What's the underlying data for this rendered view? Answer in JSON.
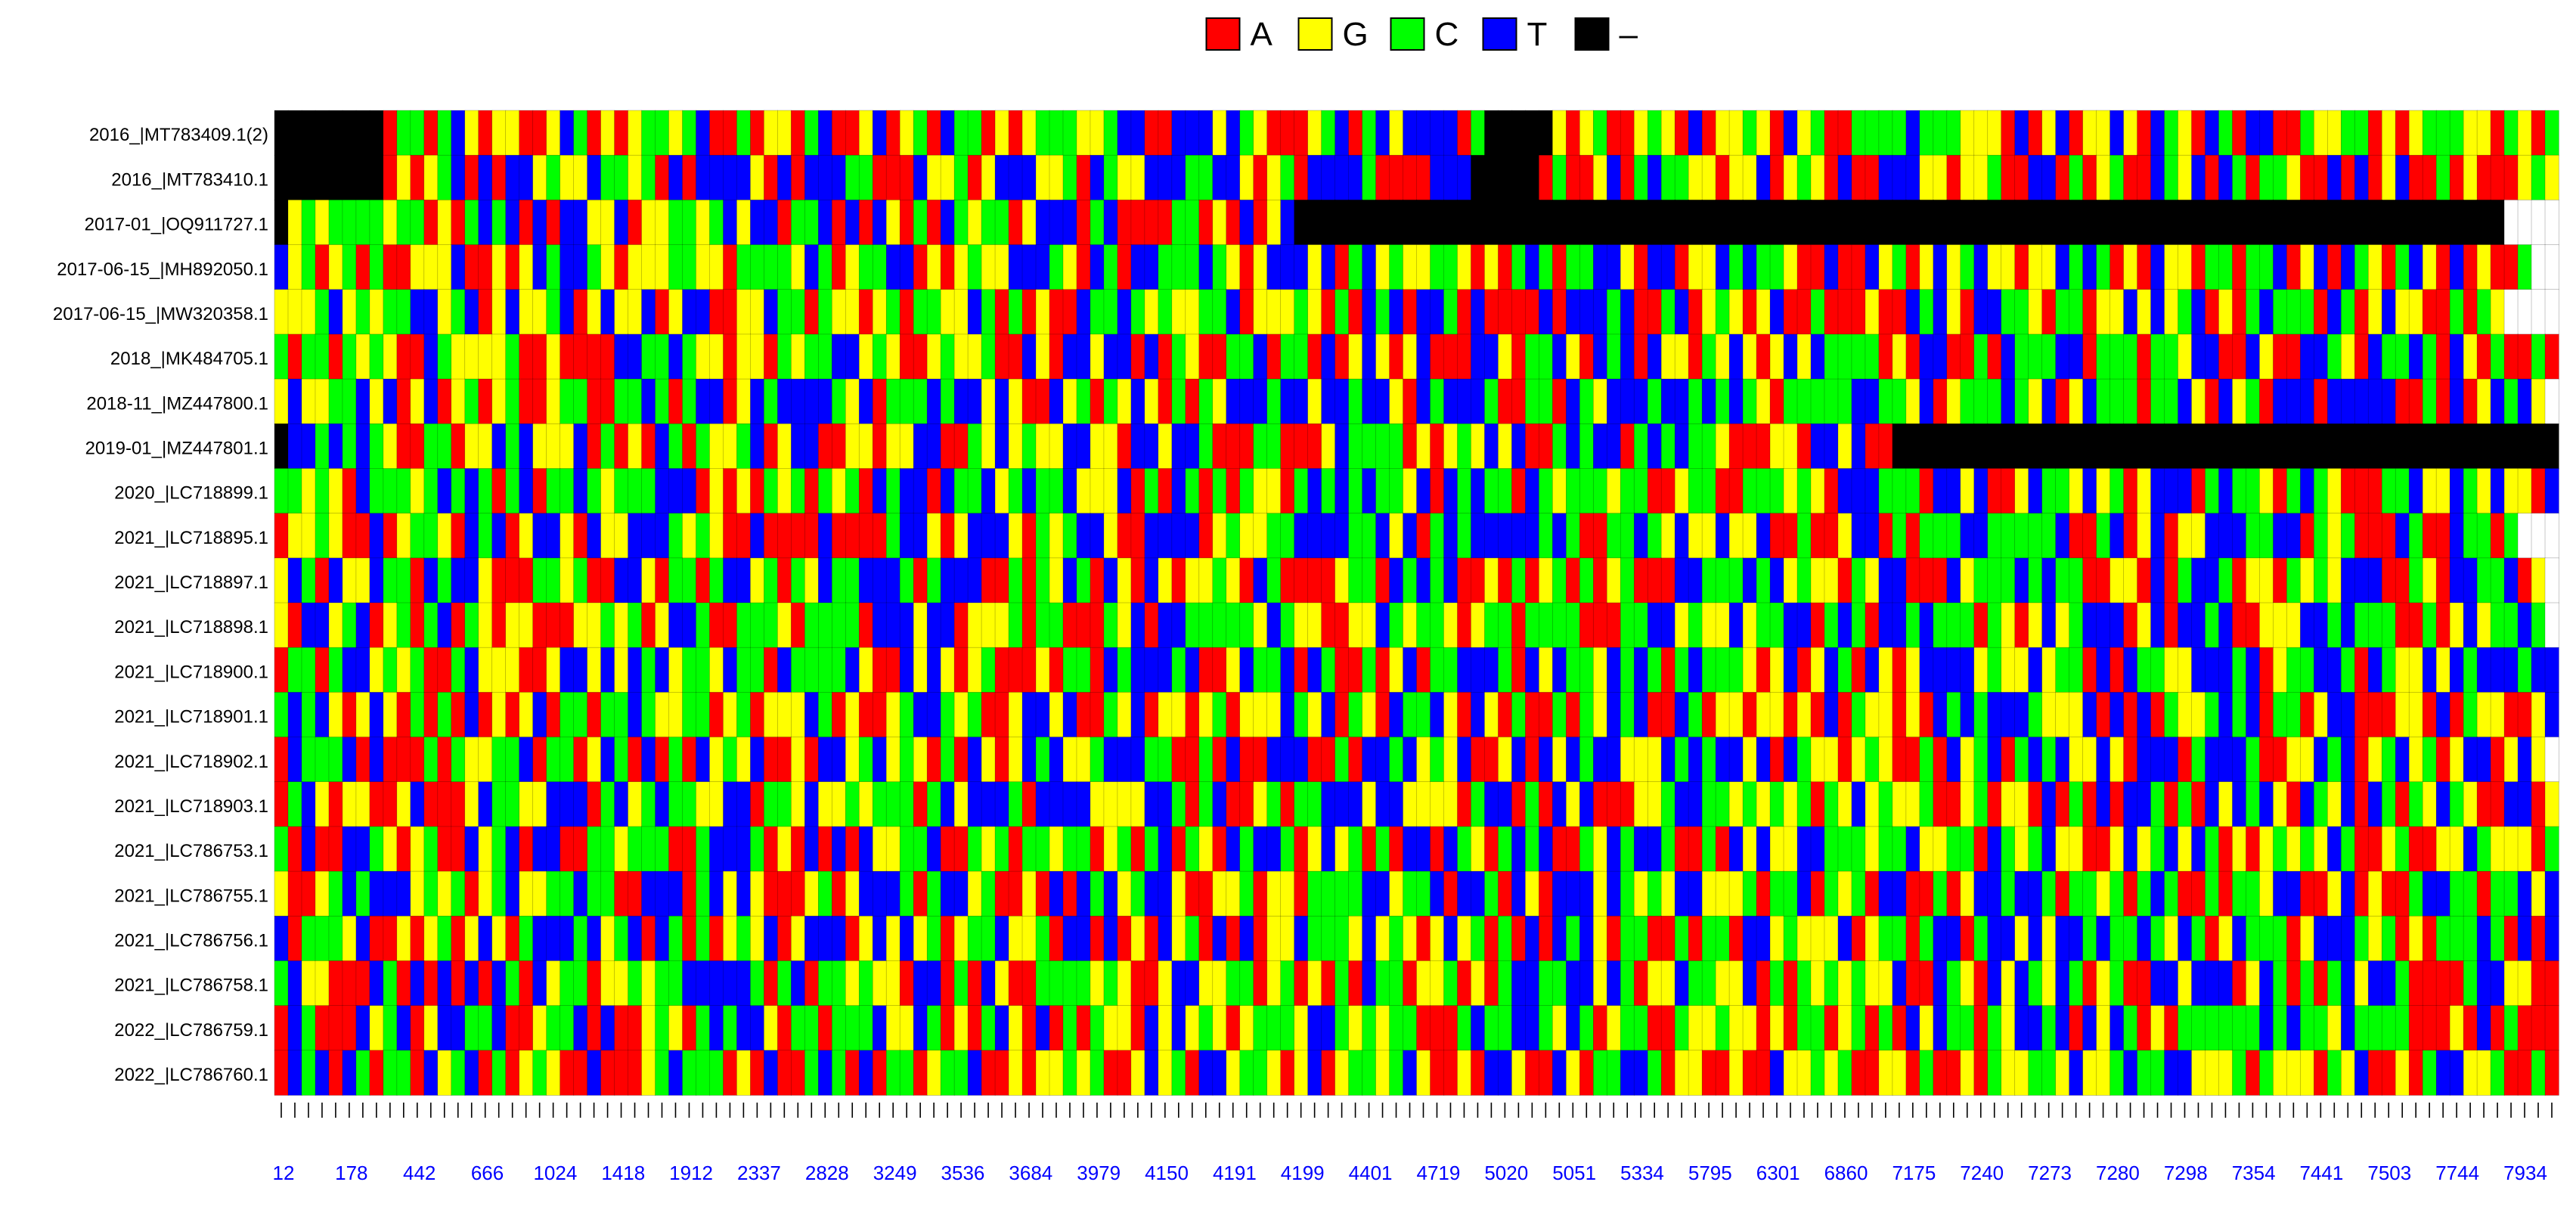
{
  "chart_data": {
    "type": "heatmap",
    "legend": {
      "placement": "top-center",
      "items": [
        {
          "symbol": "A",
          "color": "#ff0000"
        },
        {
          "symbol": "G",
          "color": "#ffff00"
        },
        {
          "symbol": "C",
          "color": "#00ff00"
        },
        {
          "symbol": "T",
          "color": "#0000ff"
        },
        {
          "symbol": "–",
          "color": "#000000"
        }
      ]
    },
    "rows": [
      {
        "label": "2016_|MT783409.1(2)",
        "seq": "--------ACCACTGAGGAAGTCAGAGCCGCTAACAGGACTAAGTAGCATCCAGAGCCCGGCTTAATTTGTCGAAAGCTACTGTTTTAC-----GAGCAAGCGATAGGCGATGCAACCCCTCCCGGGATAGTAGGTGATCGATCATTAACGGCCAGAGCCCGGACGAC"
      },
      {
        "label": "2016_|MT783410.1",
        "seq": "--------AGAGCTATATTGCGGTCCGCATATTTTGATATTTCCAAATGGCAGTTTGGCATCGGTTTCCTTGAGCATTTTCAAAATTT-----ACAAGTACTCCGGAGGTAGCGATAATTTGGAGGCAATTACAGCAATCGTATCACCGAATATAGTAACAGAAAGCG"
      },
      {
        "label": "2017-01_|OQ911727.1",
        "seq": "-GCGCCCCGCCAGACTCTATATTGGTAGGCCGCTGTTACCTATATGACATCGCCAGTTTACTAAAACCAGATAGT-----------------------------------------------------------------------------------------"
      },
      {
        "label": "2017-06-15_|MH892050.1",
        "seq": "TGCAGCACAAGGGTAAGAGTCTTCGAGGGCCGGACCCCGTCAGCCTTAGAGCGGTTTCGATCATTCCCTCGAGTTTGTACTGCGGCCGAGACTCACCTTGATTAGGTCTCCGAATAATGCAGTGCTGGAGGTCTCAGATGGACCACCTAGTATCGACTGATAGAAC"
      },
      {
        "label": "2017-06-15_|MW320358.1",
        "seq": "GGGCTGCGCCTTGCTAGTGGCTAGTGGTAGTTAAGGTCCACGGAGCACCGGTCACAGAATCCTCGCGGCCTAGGGCGACATCTATTCATAAAATATTTCTAACTAGCGAGTAACAAAGAATCTGATTCCGACCAGGTGTGCTAGACTCCCATCAGTGGAACACG"
      },
      {
        "label": "2018_|MK484705.1",
        "seq": "CACCACGCGAATCGGGGCAAGAAAATTCCTCGGAGGACGCCTTGCGAAGCGGCAATGATTGTTATACGAACCTACCATAGTGAGTAAATTGACCTGATCTATGGACGTGAGTGTCCCCAGATTAACATCCCTTACCCACCGTTAATGAATTCGATCCTCATGACAACA"
      },
      {
        "label": "2018-11_|MZ447800.1",
        "seq": "GTGGCCTGTAGTAGCAGCAAGCCAACCTCACTTAGTCTTTTCGTACCCTCTTGTGAATGCACGTGACACGTTTCTTGTTCTTGATCTTTCAACCATCGTTTCTTCTCTCGACCCCCTTCCGTAGCCCTCGTAGTCCCACCTGATGCATTTATTTTTAACATAGTCTG"
      },
      {
        "label": "2019-01_|MZ447801.1",
        "seq": "-TTCTCTCGAACCAGGTCTGGGTACAGATCACGGCTAGTTAAGGAGGTTAACGTGCGGTTGGATTGTTCAAACCAAAGTCCCCAGAGCGTGTAACTCTTACTCTCCGAAAGGATTGTAA----------------------------------------------------------"
      },
      {
        "label": "2020_|LC718899.1",
        "seq": "CCGCGATCCCGCTCTCACTACCTCGCCCTTTAGAGACGCACGCATCTTATCCTGCTCCTGGGTACATCACACGGACTCTCTCCGTATCTCCATCGCCCGCCAAGCCAACCCGCGATTTCCCATTGTAAGTCCGTGCAGTTTACTCCGACTCGAAACCTGGTCGTGGAT"
      },
      {
        "label": "2021_|LC718895.1",
        "seq": "AGGCGAATAGCCGATCTAGTTGATGGTTTCGCGAATAAAATAAAACTTGAGTTTGACGCTTGAATTTTAGCGGCCTTTTCCTGTACTCTTTTTCTCAACCTCGTGGTGGTAACAAGTTACACCCTTCCCCCTAACTAGTAGGTTTCCTTACGCAAATCAATCCAC"
      },
      {
        "label": "2021_|LC718897.1",
        "seq": "GTCATGGTCCATCTTGAAACCGCAATTGACCACTTGCACGTCCTTTCACTTTAACACGTCATGATGAGGCGATCAAAAGCCATCTCTAAGACAGCACAGCAAATTCCCTCTGCGGACGTTAAATGCCCTCTCCAAGGATACTTCAGGACGCGTTTAACGATTCCTAG"
      },
      {
        "label": "2021_|LC718898.1",
        "seq": "GATTGCTAGCACTACGAGGAAAGGCGCAGTTCAACCCGACCCCATTTGTTAGGGCACCAAACGTATTCCCCCGTCGGAAGGTCGCCGAGCCACCCCAAACCTTGCGGTGCCTTACTCATTCTCCCACGAGTGCTTTAGTATTCTAAGGGTTCTCCCAACAGTGCCTC"
      },
      {
        "label": "2021_|LC718900.1",
        "seq": "ACCACTTGCGCAACTGGGAAGTTGTGTCTGCCGTCCATCCCCTGAATGTGAGCAAAGACCATCTTTCTAAGTCCTATCAACAGTACCTTTCATGTCCGTCTCACTCCCGAGTAGTCATGAGTTTTGCGGTGCCATATCCGGTTTCTAGCCTTCATCGGTGTCTTTCTT"
      },
      {
        "label": "2021_|LC718901.1",
        "seq": "CTCTGAGTGACACATAGAGTACCACCTCGGCCAGCAGGGTCAGAAGCTTCGCAAGTTGTAACGTAGGAGCAGGGTCGTACGATCCTGATGACAACACGTCTAATCAGGAGGAGATACGGAGATCTCTTTCGGGTATATACGGCTCTACCAGTTAAAGGATACGGAAGT"
      },
      {
        "label": "2021_|LC718902.1",
        "seq": "ATCCCTATAAACACGGCCTACCAGTCATACATGCGTAAGATTGCTGCGACATGAGTCTGGCTTTCCAACATAATTTAACATTCTGCGTAAGTATGTCTTGGGTCTCTTGTATCGGAGCGAACATGCTACTCTGGTGATTTACTTTCAAGGTCTAGCTGCAGTTAGTG"
      },
      {
        "label": "2021_|LC718903.1",
        "seq": "ACTGAGGAAGTAAAGTCCGGTTTACTGCTCCGGTTACCGTGGCGCCCACTGTTTCATTTTGGGGTTCACTAAGCACCTTTGTTGGGGACTTACATGTAAAGGCTTCCGCGCGCACGTGCGGCAAGCAGGATACATATTCACATGTCTGATCGTATCACGTCGAATTAG"
      },
      {
        "label": "2021_|LC786753.1",
        "seq": "CATAATTCGAGCAATGCTATTAACCGCCCAACTTTCAGATATATGGCCTAACGCACCGCCAGCACTACGATCTTCAGTGCACATTATCGACTCTAACGTCTTCAACATGTGGTTCCCGCCTGGCCATCGCTGGAAGTGCTGTCAGAGCGCGTCAAGCAAGGTCGGGAC"
      },
      {
        "label": "2021_|LC786755.1",
        "seq": "GAAGCTCTTTGCGCAGCTGGCCTCCAATTTACTGTGAAAGCAGTTTCACTTGCAAGATATCTGCTTGAAGGCAGGACCCCTTGCCTATTCATGATTTGTCGCGTTGGGCACCTACGCATTAACAGTTCTTCACCGCACTCAACACCGTTAAGTAGAACTTCCACCTGT"
      },
      {
        "label": "2021_|LC786756.1",
        "seq": "TACCCGTAAGAGCAGTGACTTTCTGCTATCACAGCGTAGTTTAGTGTGCAGCCTGGCATTATAGATGCATATAGGTCCCGTGCGAGTGCACATATCTGACCAACACCATTGCGGGTAGCCACTTACTTGTGTTCTCCTCGTCAGTCCCAGTTTCGCAGACCCTCATAT"
      },
      {
        "label": "2021_|LC786758.1",
        "seq": "CTGGAAATCATATATATCATGCCAGGCGCCTTTTTCACTACCGCGGATTACATGAACCCCGCGAAGTTGGCCAGCAGACATCCAGGCAGACTTCCTTGTCAGGTCCGGTACACGCGCGGTAATCGATGTCGTCAGCAATTGTTTAGTCACACTGTTCAAAACTTGGAA"
      },
      {
        "label": "2022_|LC786759.1",
        "seq": "ATCAAATGCTAGTTCCTAAGCCTATAAGCGACTCTTGACCACCCTGGTCAGACTGATACACGGATGTGCGAGCCCGTTCGCGCCAAACTCCTTCGTCAGCCAACGGCGGAGACCAGCACATGTCCACGTTCTATGTCAGACCCCCCTCTCCGTCCCCAAAGATACAAAA"
      },
      {
        "label": "2022_|LC786760.1",
        "seq": "ATCTATCACCATGCTACAGCGAATAAAGCTCCCAGATAACTCATACCAGCCTAAGAGGCGCAAGTGCATTGCCGAGTAGCCGCTGAAGATTGAATGACCTTCAGGAAGAATGGCGCAAGGACAAGACGGCCGTGGCTCCTTGGGCACGGGACGTAAGACTTGGCAACA"
      }
    ],
    "x_ticks": [
      "12",
      "178",
      "442",
      "666",
      "1024",
      "1418",
      "1912",
      "2337",
      "2828",
      "3249",
      "3536",
      "3684",
      "3979",
      "4150",
      "4191",
      "4199",
      "4401",
      "4719",
      "5020",
      "5051",
      "5334",
      "5795",
      "6301",
      "6860",
      "7175",
      "7240",
      "7273",
      "7280",
      "7298",
      "7354",
      "7441",
      "7503",
      "7744",
      "7934"
    ],
    "tick_color": "#0000ff"
  }
}
